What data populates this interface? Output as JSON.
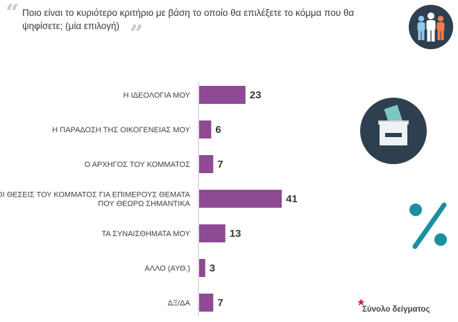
{
  "header": {
    "question_line1": "Ποιο είναι το κυριότερο κριτήριο με βάση το οποίο θα επιλέξετε το κόμμα που θα",
    "question_line2": "ψηφίσετε; (μία επιλογή)",
    "quote_open": "“",
    "quote_close": "”"
  },
  "chart_data": {
    "type": "bar",
    "orientation": "horizontal",
    "title": "Ποιο είναι το κυριότερο κριτήριο με βάση το οποίο θα επιλέξετε το κόμμα που θα ψηφίσετε; (μία επιλογή)",
    "unit": "%",
    "categories": [
      [
        "Η ΙΔΕΟΛΟΓΙΑ ΜΟΥ"
      ],
      [
        "Η ΠΑΡΑΔΟΣΗ ΤΗΣ ΟΙΚΟΓΕΝΕΙΑΣ ΜΟΥ"
      ],
      [
        "Ο ΑΡΧΗΓΟΣ ΤΟΥ ΚΟΜΜΑΤΟΣ"
      ],
      [
        "ΟΙ ΘΕΣΕΙΣ ΤΟΥ ΚΟΜΜΑΤΟΣ ΓΙΑ ΕΠΙΜΕΡΟΥΣ ΘΕΜΑΤΑ",
        "ΠΟΥ ΘΕΩΡΩ ΣΗΜΑΝΤΙΚΑ"
      ],
      [
        "ΤΑ ΣΥΝΑΙΣΘΗΜΑΤΑ ΜΟΥ"
      ],
      [
        "ΑΛΛΟ (ΑΥΘ.)"
      ],
      [
        "ΔΞ/ΔΑ"
      ]
    ],
    "values": [
      23,
      6,
      7,
      41,
      13,
      3,
      7
    ],
    "xlim": [
      0,
      41
    ],
    "bar_color": "#8e4a93"
  },
  "icons": {
    "people": "people-group-icon",
    "ballot": "ballot-box-icon",
    "percent": "percent-icon"
  },
  "colors": {
    "icon_circle": "#2e3f4f",
    "teal": "#1b8fa2"
  },
  "footnote": {
    "star": "*",
    "text": "Σύνολο δείγματος"
  }
}
